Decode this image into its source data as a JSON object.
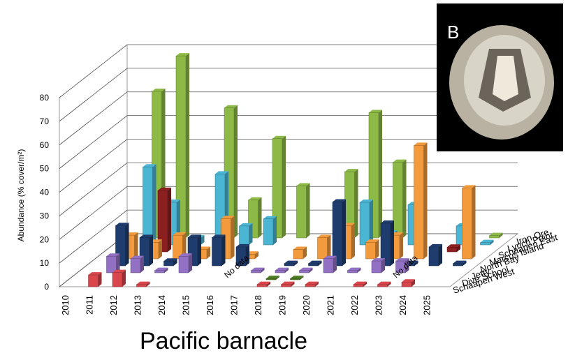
{
  "chart_data": {
    "type": "bar3d",
    "title": "Pacific barnacle",
    "panel_label": "B",
    "y_label": "Abundance (% cover/m²)",
    "categories": [
      "2010",
      "2011",
      "2012",
      "2013",
      "2014",
      "2015",
      "2016",
      "2017",
      "2018",
      "2019",
      "2020",
      "2021",
      "2022",
      "2023",
      "2024",
      "2025"
    ],
    "ylim": [
      0,
      80
    ],
    "yticks": [
      0,
      10,
      20,
      30,
      40,
      50,
      60,
      70,
      80
    ],
    "grid": true,
    "annotations": [
      {
        "text": "No data",
        "category": "2017"
      },
      {
        "text": "No data",
        "category": "2024"
      }
    ],
    "series": [
      {
        "name": "Schaapen West",
        "color": "#d9464b",
        "values": [
          null,
          5,
          6,
          1,
          null,
          null,
          null,
          null,
          1,
          1,
          1,
          null,
          1,
          1,
          2,
          null
        ]
      },
      {
        "name": "Dive School",
        "color": "#4f7d24",
        "values": [
          null,
          null,
          null,
          null,
          null,
          null,
          null,
          null,
          0.5,
          0.5,
          null,
          null,
          null,
          null,
          null,
          null
        ]
      },
      {
        "name": "Jetty",
        "color": "#9270c4",
        "values": [
          null,
          7,
          6,
          1,
          7,
          null,
          null,
          1,
          1,
          1,
          6,
          1,
          5,
          5,
          null,
          null
        ]
      },
      {
        "name": "North Bay",
        "color": "#1f3c6e",
        "values": [
          null,
          17,
          12,
          2,
          12,
          12,
          8,
          null,
          1,
          1,
          27,
          null,
          18,
          1,
          8,
          1
        ]
      },
      {
        "name": "Marcus Island",
        "color": "#f39a3c",
        "values": [
          null,
          10,
          7,
          10,
          4,
          17,
          2,
          null,
          4,
          9,
          14,
          7,
          10,
          48,
          null,
          30
        ]
      },
      {
        "name": "Schaapen East",
        "color": "#8c1f1f",
        "values": [
          null,
          null,
          26,
          null,
          null,
          null,
          null,
          null,
          null,
          null,
          null,
          null,
          null,
          null,
          2,
          null
        ]
      },
      {
        "name": "Lynch Point",
        "color": "#4bb5d4",
        "values": [
          null,
          33,
          18,
          3,
          30,
          8,
          11,
          null,
          null,
          null,
          18,
          5,
          17,
          null,
          8,
          1
        ]
      },
      {
        "name": "Iron Ore",
        "color": "#8dba47",
        "values": [
          null,
          62,
          77,
          null,
          55,
          16,
          42,
          22,
          null,
          28,
          53,
          32,
          null,
          null,
          null,
          1
        ]
      }
    ]
  }
}
